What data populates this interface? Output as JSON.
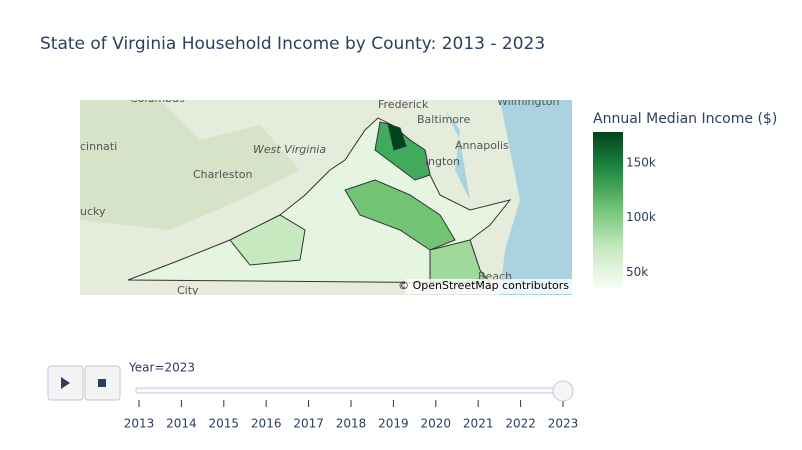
{
  "map": {
    "title": "State of Virginia Household Income by County: 2013 - 2023",
    "place_labels": [
      "Columbus",
      "Wilmington",
      "Frederick",
      "Baltimore",
      "cinnati",
      "West Virginia",
      "Annapolis",
      "ington",
      "Charleston",
      "ucky",
      "Beach",
      "City"
    ],
    "attribution": "© OpenStreetMap contributors",
    "colorbar": {
      "title": "Annual Median Income ($)",
      "range": [
        37000,
        178000
      ],
      "ticks": [
        {
          "value": 50000,
          "label": "50k"
        },
        {
          "value": 100000,
          "label": "100k"
        },
        {
          "value": 150000,
          "label": "150k"
        }
      ],
      "colorscale": [
        "#f7fcf5",
        "#c7e9c0",
        "#74c476",
        "#238b45",
        "#00441b"
      ]
    },
    "slider": {
      "current": "Year=2023",
      "steps": [
        "2013",
        "2014",
        "2015",
        "2016",
        "2017",
        "2018",
        "2019",
        "2020",
        "2021",
        "2022",
        "2023"
      ],
      "active": 10
    }
  }
}
